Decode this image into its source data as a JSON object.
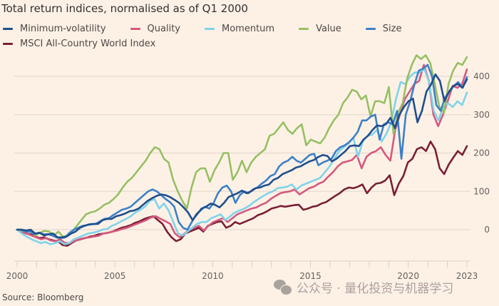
{
  "chart_data": {
    "type": "line",
    "title": "Total return indices, normalised as of Q1 2000",
    "xlabel": "",
    "ylabel": "",
    "x_start": 2000.0,
    "x_end": 2023.0,
    "x_step": 0.25,
    "xlim": [
      2000,
      2023
    ],
    "ylim": [
      -50,
      460
    ],
    "y_ticks": [
      0,
      100,
      200,
      300,
      400
    ],
    "x_ticks": [
      2000,
      2005,
      2010,
      2015,
      2020,
      2023
    ],
    "x_minor_ticks_per_year": true,
    "grid": "horizontal",
    "y_axis_side": "right",
    "legend_position": "top-left",
    "series": [
      {
        "name": "Minimum-volatility",
        "color": "#1f4e8c",
        "values": [
          0,
          0,
          -2,
          0,
          -10,
          -8,
          -15,
          -12,
          -10,
          -20,
          -20,
          -18,
          -10,
          -5,
          5,
          10,
          14,
          15,
          15,
          25,
          28,
          28,
          35,
          38,
          42,
          48,
          50,
          55,
          65,
          75,
          82,
          88,
          92,
          90,
          85,
          78,
          70,
          58,
          45,
          25,
          40,
          55,
          60,
          68,
          65,
          58,
          70,
          85,
          90,
          95,
          102,
          95,
          100,
          108,
          110,
          115,
          118,
          130,
          135,
          145,
          150,
          155,
          162,
          165,
          172,
          178,
          182,
          190,
          195,
          192,
          178,
          185,
          195,
          205,
          218,
          220,
          218,
          235,
          245,
          260,
          272,
          270,
          275,
          292,
          265,
          300,
          320,
          335,
          342,
          280,
          310,
          360,
          378,
          405,
          388,
          335,
          360,
          375,
          380,
          370,
          392
        ]
      },
      {
        "name": "Quality",
        "color": "#d4597e",
        "values": [
          0,
          -5,
          -10,
          -15,
          -20,
          -25,
          -22,
          -28,
          -30,
          -25,
          -35,
          -35,
          -30,
          -25,
          -22,
          -20,
          -18,
          -16,
          -10,
          -8,
          -5,
          -2,
          2,
          5,
          10,
          15,
          20,
          25,
          32,
          35,
          28,
          22,
          15,
          -10,
          -20,
          -10,
          0,
          5,
          10,
          -2,
          10,
          20,
          25,
          30,
          20,
          30,
          40,
          45,
          50,
          55,
          58,
          65,
          70,
          80,
          88,
          95,
          98,
          100,
          105,
          92,
          100,
          108,
          112,
          120,
          125,
          138,
          150,
          165,
          175,
          178,
          182,
          195,
          160,
          190,
          200,
          205,
          215,
          195,
          180,
          260,
          300,
          340,
          360,
          380,
          388,
          430,
          390,
          300,
          270,
          300,
          335,
          375,
          370,
          380,
          418
        ]
      },
      {
        "name": "Momentum",
        "color": "#7fd3ea",
        "values": [
          0,
          -10,
          -18,
          -25,
          -30,
          -35,
          -32,
          -38,
          -35,
          -30,
          -38,
          -35,
          -25,
          -20,
          -15,
          -10,
          -8,
          -5,
          0,
          2,
          10,
          15,
          22,
          28,
          35,
          45,
          52,
          60,
          75,
          80,
          55,
          68,
          50,
          20,
          -10,
          -15,
          -5,
          5,
          15,
          20,
          20,
          30,
          35,
          40,
          25,
          35,
          45,
          50,
          55,
          62,
          72,
          80,
          88,
          95,
          100,
          108,
          110,
          112,
          118,
          105,
          115,
          120,
          125,
          130,
          135,
          150,
          165,
          185,
          205,
          215,
          225,
          240,
          190,
          230,
          245,
          248,
          260,
          230,
          250,
          280,
          340,
          385,
          380,
          400,
          410,
          410,
          420,
          385,
          310,
          285,
          320,
          330,
          320,
          335,
          325,
          358
        ]
      },
      {
        "name": "Value",
        "color": "#96c063",
        "values": [
          0,
          -2,
          -5,
          -5,
          -15,
          -8,
          -3,
          -5,
          -15,
          -5,
          -18,
          -15,
          -5,
          10,
          25,
          40,
          45,
          48,
          55,
          65,
          70,
          80,
          92,
          110,
          125,
          135,
          150,
          165,
          180,
          200,
          215,
          210,
          185,
          175,
          130,
          100,
          75,
          55,
          110,
          150,
          160,
          160,
          125,
          155,
          175,
          200,
          200,
          130,
          150,
          180,
          150,
          175,
          190,
          200,
          210,
          245,
          250,
          265,
          280,
          260,
          250,
          265,
          275,
          220,
          235,
          230,
          225,
          240,
          265,
          285,
          300,
          330,
          345,
          365,
          360,
          340,
          350,
          295,
          335,
          335,
          330,
          372,
          250,
          305,
          330,
          395,
          430,
          455,
          445,
          455,
          435,
          380,
          320,
          305,
          380,
          415,
          435,
          430,
          450
        ]
      },
      {
        "name": "Size",
        "color": "#3c80c7",
        "values": [
          0,
          0,
          -5,
          -5,
          -12,
          -8,
          -12,
          -12,
          -15,
          -20,
          -22,
          -20,
          -8,
          0,
          5,
          10,
          12,
          14,
          15,
          22,
          28,
          30,
          38,
          45,
          52,
          55,
          60,
          70,
          80,
          90,
          100,
          105,
          100,
          90,
          80,
          72,
          60,
          20,
          5,
          0,
          20,
          40,
          50,
          60,
          55,
          70,
          95,
          110,
          115,
          100,
          70,
          90,
          100,
          95,
          105,
          110,
          120,
          128,
          140,
          145,
          165,
          175,
          180,
          190,
          180,
          175,
          185,
          195,
          198,
          168,
          175,
          180,
          185,
          205,
          215,
          220,
          228,
          240,
          255,
          285,
          285,
          295,
          300,
          235,
          275,
          280,
          275,
          310,
          185,
          300,
          335,
          380,
          415,
          420,
          430,
          400,
          325,
          310,
          345,
          360,
          375,
          385,
          370,
          398
        ]
      },
      {
        "name": "MSCI All-Country World Index",
        "color": "#7a1f34",
        "values": [
          0,
          -5,
          -10,
          -12,
          -18,
          -22,
          -20,
          -25,
          -28,
          -30,
          -40,
          -42,
          -35,
          -28,
          -25,
          -22,
          -18,
          -16,
          -12,
          -10,
          -8,
          -5,
          0,
          5,
          8,
          12,
          18,
          22,
          28,
          32,
          35,
          25,
          15,
          -5,
          -20,
          -30,
          -25,
          -10,
          -5,
          0,
          5,
          -5,
          10,
          15,
          20,
          22,
          5,
          10,
          20,
          15,
          20,
          25,
          30,
          38,
          42,
          48,
          55,
          58,
          62,
          60,
          62,
          64,
          65,
          52,
          55,
          60,
          62,
          68,
          72,
          80,
          88,
          95,
          105,
          110,
          108,
          112,
          118,
          95,
          110,
          120,
          122,
          128,
          142,
          90,
          120,
          140,
          175,
          185,
          210,
          215,
          205,
          230,
          210,
          160,
          145,
          170,
          188,
          205,
          195,
          218
        ]
      }
    ]
  },
  "title": "Total return indices, normalised as of Q1 2000",
  "legend": [
    {
      "label": "Minimum-volatility",
      "color": "#1f4e8c"
    },
    {
      "label": "Quality",
      "color": "#d4597e"
    },
    {
      "label": "Momentum",
      "color": "#7fd3ea"
    },
    {
      "label": "Value",
      "color": "#96c063"
    },
    {
      "label": "Size",
      "color": "#3c80c7"
    },
    {
      "label": "MSCI All-Country World Index",
      "color": "#7a1f34"
    }
  ],
  "source": "Source: Bloomberg",
  "watermark": "公众号 · 量化投资与机器学习"
}
